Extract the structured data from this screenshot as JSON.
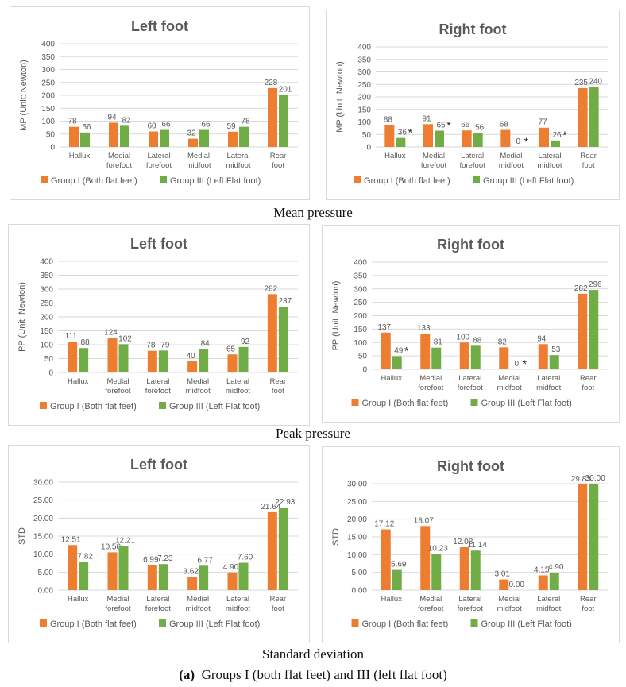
{
  "legend": [
    "Group I (Both flat feet)",
    "Group III (Left Flat foot)"
  ],
  "colors": {
    "group1": "#ED7D31",
    "group3": "#70AD47",
    "grid": "#d9d9d9",
    "text": "#595959"
  },
  "categories": [
    [
      "Hallux"
    ],
    [
      "Medial",
      "forefoot"
    ],
    [
      "Lateral",
      "forefoot"
    ],
    [
      "Medial",
      "midfoot"
    ],
    [
      "Lateral",
      "midfoot"
    ],
    [
      "Rear",
      "foot"
    ]
  ],
  "captions": {
    "mean": "Mean pressure",
    "peak": "Peak pressure",
    "std": "Standard deviation",
    "figure_label": "(a)",
    "figure_text": "Groups I (both flat feet) and III (left flat foot)"
  },
  "chart_data": [
    {
      "type": "bar",
      "title": "Left foot",
      "ylabel": "MP (Unit: Newton)",
      "ylim": [
        0,
        400
      ],
      "ystep": 50,
      "decimals": 0,
      "series": [
        {
          "name": "Group I (Both flat feet)",
          "values": [
            78,
            94,
            60,
            32,
            59,
            228
          ]
        },
        {
          "name": "Group III (Left Flat foot)",
          "values": [
            56,
            82,
            66,
            66,
            78,
            201
          ]
        }
      ],
      "significant": []
    },
    {
      "type": "bar",
      "title": "Right foot",
      "ylabel": "MP (Unit: Newton)",
      "ylim": [
        0,
        400
      ],
      "ystep": 50,
      "decimals": 0,
      "series": [
        {
          "name": "Group I (Both flat feet)",
          "values": [
            88,
            91,
            66,
            68,
            77,
            235
          ]
        },
        {
          "name": "Group III (Left Flat foot)",
          "values": [
            36,
            65,
            56,
            0,
            26,
            240
          ]
        }
      ],
      "significant": [
        0,
        1,
        3,
        4
      ],
      "significant_mark": "*"
    },
    {
      "type": "bar",
      "title": "Left foot",
      "ylabel": "PP  (Unit: Newton)",
      "ylim": [
        0,
        400
      ],
      "ystep": 50,
      "decimals": 0,
      "series": [
        {
          "name": "Group I (Both flat feet)",
          "values": [
            111,
            124,
            78,
            40,
            65,
            282
          ]
        },
        {
          "name": "Group III (Left Flat foot)",
          "values": [
            88,
            102,
            79,
            84,
            92,
            237
          ]
        }
      ],
      "significant": []
    },
    {
      "type": "bar",
      "title": "Right foot",
      "ylabel": "PP  (Unit: Newton)",
      "ylim": [
        0,
        400
      ],
      "ystep": 50,
      "decimals": 0,
      "series": [
        {
          "name": "Group I (Both flat feet)",
          "values": [
            137,
            133,
            100,
            82,
            94,
            282
          ]
        },
        {
          "name": "Group III (Left Flat foot)",
          "values": [
            49,
            81,
            88,
            0,
            53,
            296
          ]
        }
      ],
      "significant": [
        0,
        3
      ],
      "significant_mark": "*"
    },
    {
      "type": "bar",
      "title": "Left foot",
      "ylabel": "STD",
      "ylim": [
        0,
        30
      ],
      "ystep": 5,
      "decimals": 2,
      "series": [
        {
          "name": "Group I (Both flat feet)",
          "values": [
            12.51,
            10.5,
            6.99,
            3.62,
            4.9,
            21.64
          ]
        },
        {
          "name": "Group III (Left Flat foot)",
          "values": [
            7.82,
            12.21,
            7.23,
            6.77,
            7.6,
            22.93
          ]
        }
      ],
      "significant": []
    },
    {
      "type": "bar",
      "title": "Right foot",
      "ylabel": "STD",
      "ylim": [
        0,
        30
      ],
      "ystep": 5,
      "decimals": 2,
      "series": [
        {
          "name": "Group I (Both flat feet)",
          "values": [
            17.12,
            18.07,
            12.08,
            3.01,
            4.15,
            29.83
          ]
        },
        {
          "name": "Group III (Left Flat foot)",
          "values": [
            5.69,
            10.23,
            11.14,
            0.0,
            4.9,
            30.0
          ]
        }
      ],
      "significant": []
    }
  ]
}
